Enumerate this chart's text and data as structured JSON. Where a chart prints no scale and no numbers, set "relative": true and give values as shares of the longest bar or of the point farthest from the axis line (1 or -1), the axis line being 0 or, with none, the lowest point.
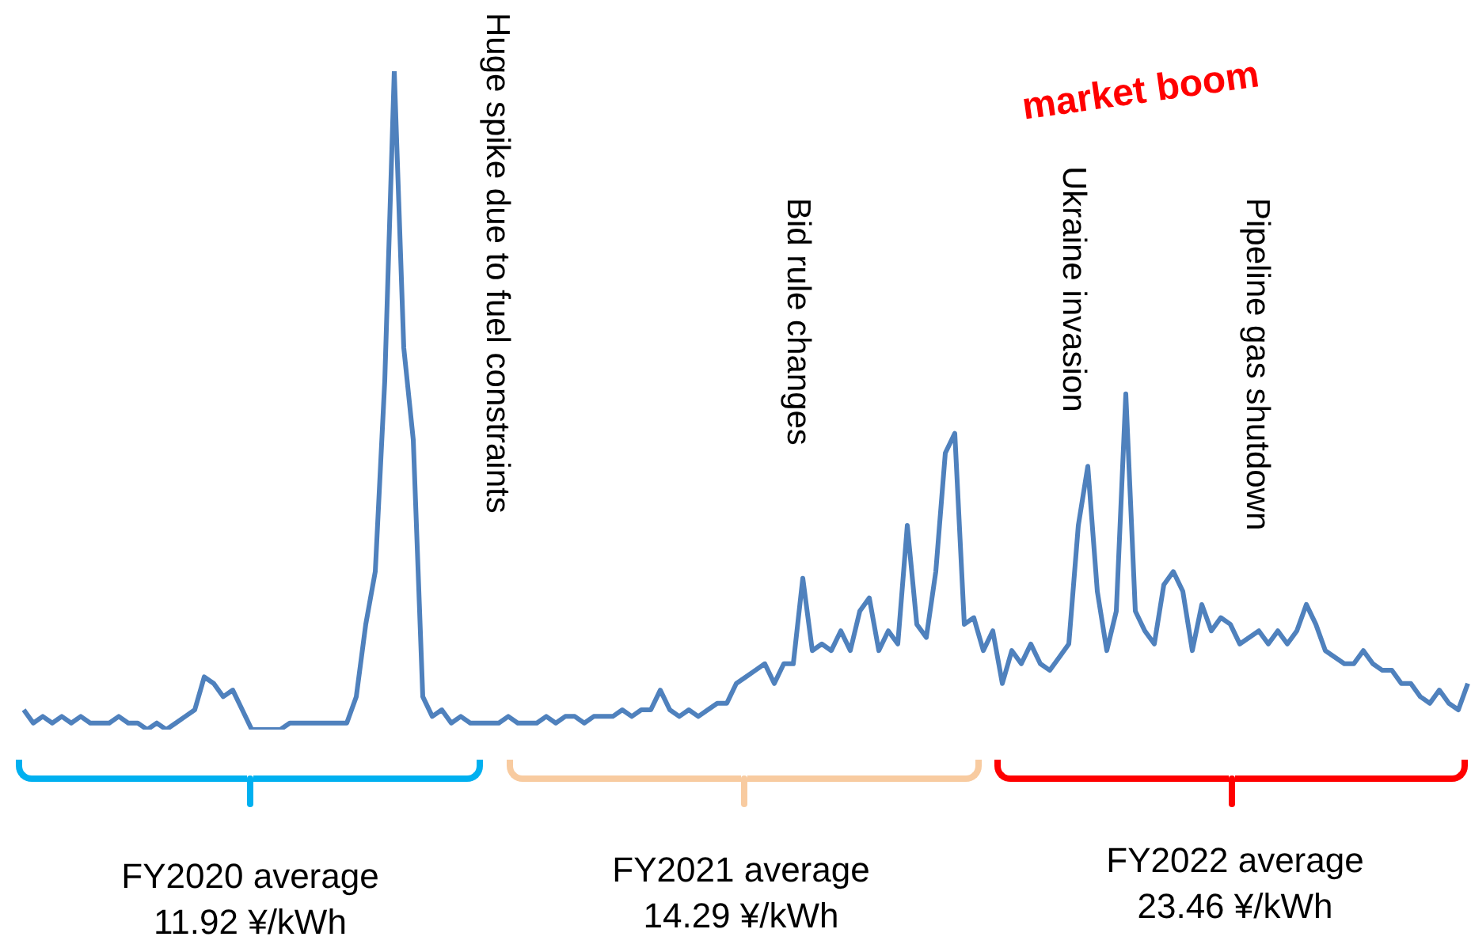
{
  "chart_data": {
    "type": "line",
    "relative": true,
    "legend": false,
    "marker": "none",
    "categories": [
      null,
      null,
      null,
      null,
      null,
      null,
      null,
      null,
      null,
      null,
      null,
      null,
      null,
      null,
      null,
      null,
      null,
      null,
      null,
      null,
      null,
      null,
      null,
      null,
      null,
      null,
      null,
      null,
      null,
      null,
      null,
      null,
      null,
      null,
      null,
      null,
      null,
      null,
      null,
      null,
      null,
      null,
      null,
      null,
      null,
      null,
      null,
      null,
      null,
      null,
      null,
      null,
      null,
      null,
      null,
      null,
      null,
      null,
      null,
      null,
      null,
      null,
      null,
      null,
      null,
      null,
      null,
      null,
      null,
      null,
      null,
      null,
      null,
      null,
      null,
      null,
      null,
      null,
      null,
      null,
      null,
      null,
      null,
      null,
      null,
      null,
      null,
      null,
      null,
      null,
      null,
      null,
      null,
      null,
      null,
      null,
      null,
      null,
      null,
      null,
      null,
      null,
      null,
      null,
      null,
      null,
      null,
      null,
      null,
      null,
      null,
      null,
      null,
      null,
      null,
      null,
      null,
      null,
      null,
      null,
      null,
      null,
      null,
      null,
      null,
      null,
      null,
      null,
      null,
      null,
      null,
      null,
      null,
      null,
      null,
      null,
      null,
      null,
      null,
      null,
      null,
      null,
      null,
      null,
      null,
      null,
      null,
      null,
      null,
      null,
      null,
      null,
      null
    ],
    "series": [
      {
        "color": "#4f81bd",
        "values": [
          0.03,
          0.01,
          0.02,
          0.01,
          0.02,
          0.01,
          0.02,
          0.01,
          0.01,
          0.01,
          0.02,
          0.01,
          0.01,
          0,
          0.01,
          0,
          0.01,
          0.02,
          0.03,
          0.08,
          0.07,
          0.05,
          0.06,
          0.03,
          0,
          0,
          0,
          0,
          0.01,
          0.01,
          0.01,
          0.01,
          0.01,
          0.01,
          0.01,
          0.05,
          0.16,
          0.24,
          0.53,
          1,
          0.58,
          0.44,
          0.05,
          0.02,
          0.03,
          0.01,
          0.02,
          0.01,
          0.01,
          0.01,
          0.01,
          0.02,
          0.01,
          0.01,
          0.01,
          0.02,
          0.01,
          0.02,
          0.02,
          0.01,
          0.02,
          0.02,
          0.02,
          0.03,
          0.02,
          0.03,
          0.03,
          0.06,
          0.03,
          0.02,
          0.03,
          0.02,
          0.03,
          0.04,
          0.04,
          0.07,
          0.08,
          0.09,
          0.1,
          0.07,
          0.1,
          0.1,
          0.23,
          0.12,
          0.13,
          0.12,
          0.15,
          0.12,
          0.18,
          0.2,
          0.12,
          0.15,
          0.13,
          0.31,
          0.16,
          0.14,
          0.24,
          0.42,
          0.45,
          0.16,
          0.17,
          0.12,
          0.15,
          0.07,
          0.12,
          0.1,
          0.13,
          0.1,
          0.09,
          0.11,
          0.13,
          0.31,
          0.4,
          0.21,
          0.12,
          0.18,
          0.51,
          0.18,
          0.15,
          0.13,
          0.22,
          0.24,
          0.21,
          0.12,
          0.19,
          0.15,
          0.17,
          0.16,
          0.13,
          0.14,
          0.15,
          0.13,
          0.15,
          0.13,
          0.15,
          0.19,
          0.16,
          0.12,
          0.11,
          0.1,
          0.1,
          0.12,
          0.1,
          0.09,
          0.09,
          0.07,
          0.07,
          0.05,
          0.04,
          0.06,
          0.04,
          0.03,
          0.07
        ]
      }
    ],
    "annotations": [
      "Huge spike due to fuel constraints",
      "Bid rule changes",
      "Ukraine invasion",
      "Pipeline gas shutdown",
      "market boom",
      "FY2020 average\n11.92 ¥/kWh",
      "FY2021 average\n14.29 ¥/kWh",
      "FY2022 average\n23.46 ¥/kWh"
    ]
  }
}
